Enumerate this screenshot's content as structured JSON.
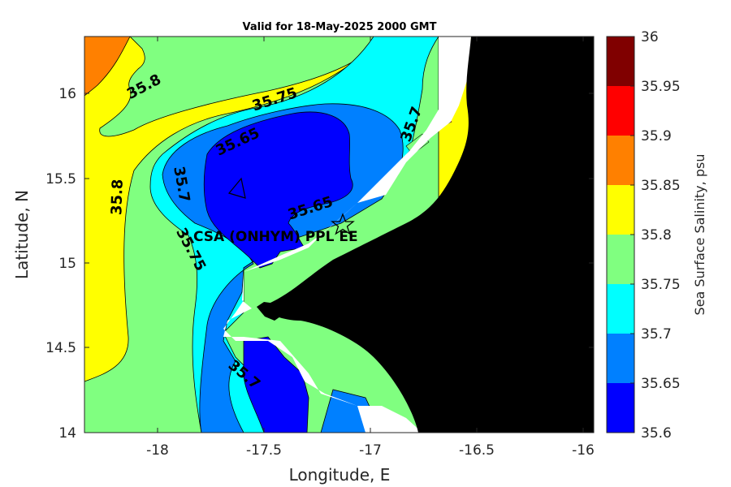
{
  "map": {
    "title": "Valid for 18-May-2025 2000 GMT",
    "xlabel": "Longitude, E",
    "ylabel": "Latitude, N",
    "x_ticks": [
      "-18",
      "-17.5",
      "-17",
      "-16.5",
      "-16"
    ],
    "y_ticks": [
      "16",
      "15.5",
      "15",
      "14.5",
      "14"
    ],
    "x_range": [
      -18.35,
      -15.93
    ],
    "y_range": [
      14.0,
      16.33
    ],
    "site_label": "CSA (ONHYM) PPL EE",
    "site_marker": "star-icon",
    "land_color": "#000000",
    "contour_labels": [
      {
        "text": "35.8",
        "value": 35.8
      },
      {
        "text": "35.75",
        "value": 35.75
      },
      {
        "text": "35.65",
        "value": 35.65
      },
      {
        "text": "35.7",
        "value": 35.7
      },
      {
        "text": "35.7",
        "value": 35.7
      },
      {
        "text": "35.8",
        "value": 35.8
      },
      {
        "text": "35.75",
        "value": 35.75
      },
      {
        "text": "35.65",
        "value": 35.65
      },
      {
        "text": "35.7",
        "value": 35.7
      }
    ]
  },
  "colorbar": {
    "label": "Sea Surface Salinity, psu",
    "ticks": [
      "36",
      "35.95",
      "35.9",
      "35.85",
      "35.8",
      "35.75",
      "35.7",
      "35.65",
      "35.6"
    ],
    "levels": [
      {
        "from": 35.95,
        "to": 36.0,
        "color": "#800000"
      },
      {
        "from": 35.9,
        "to": 35.95,
        "color": "#ff0000"
      },
      {
        "from": 35.85,
        "to": 35.9,
        "color": "#ff8000"
      },
      {
        "from": 35.8,
        "to": 35.85,
        "color": "#ffff00"
      },
      {
        "from": 35.75,
        "to": 35.8,
        "color": "#80ff80"
      },
      {
        "from": 35.7,
        "to": 35.75,
        "color": "#00ffff"
      },
      {
        "from": 35.65,
        "to": 35.7,
        "color": "#0080ff"
      },
      {
        "from": 35.6,
        "to": 35.65,
        "color": "#0000ff"
      }
    ]
  }
}
